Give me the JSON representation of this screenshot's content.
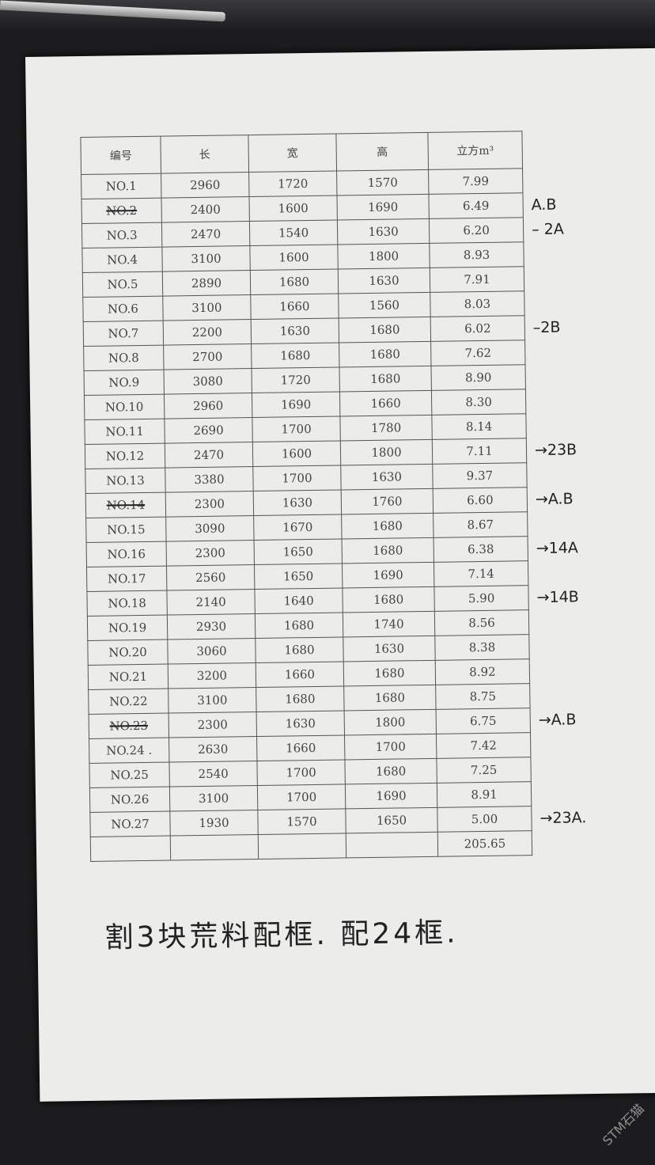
{
  "headers": [
    "编号",
    "长",
    "宽",
    "高",
    "立方m³"
  ],
  "rows": [
    {
      "id": "NO.1",
      "l": "2960",
      "w": "1720",
      "h": "1570",
      "v": "7.99",
      "note": "",
      "struck": false
    },
    {
      "id": "NO.2",
      "l": "2400",
      "w": "1600",
      "h": "1690",
      "v": "6.49",
      "note": "A.B",
      "struck": true
    },
    {
      "id": "NO.3",
      "l": "2470",
      "w": "1540",
      "h": "1630",
      "v": "6.20",
      "note": "– 2A",
      "struck": false
    },
    {
      "id": "NO.4",
      "l": "3100",
      "w": "1600",
      "h": "1800",
      "v": "8.93",
      "note": "",
      "struck": false
    },
    {
      "id": "NO.5",
      "l": "2890",
      "w": "1680",
      "h": "1630",
      "v": "7.91",
      "note": "",
      "struck": false
    },
    {
      "id": "NO.6",
      "l": "3100",
      "w": "1660",
      "h": "1560",
      "v": "8.03",
      "note": "",
      "struck": false
    },
    {
      "id": "NO.7",
      "l": "2200",
      "w": "1630",
      "h": "1680",
      "v": "6.02",
      "note": "–2B",
      "struck": false
    },
    {
      "id": "NO.8",
      "l": "2700",
      "w": "1680",
      "h": "1680",
      "v": "7.62",
      "note": "",
      "struck": false
    },
    {
      "id": "NO.9",
      "l": "3080",
      "w": "1720",
      "h": "1680",
      "v": "8.90",
      "note": "",
      "struck": false
    },
    {
      "id": "NO.10",
      "l": "2960",
      "w": "1690",
      "h": "1660",
      "v": "8.30",
      "note": "",
      "struck": false
    },
    {
      "id": "NO.11",
      "l": "2690",
      "w": "1700",
      "h": "1780",
      "v": "8.14",
      "note": "",
      "struck": false
    },
    {
      "id": "NO.12",
      "l": "2470",
      "w": "1600",
      "h": "1800",
      "v": "7.11",
      "note": "→23B",
      "struck": false
    },
    {
      "id": "NO.13",
      "l": "3380",
      "w": "1700",
      "h": "1630",
      "v": "9.37",
      "note": "",
      "struck": false
    },
    {
      "id": "NO.14",
      "l": "2300",
      "w": "1630",
      "h": "1760",
      "v": "6.60",
      "note": "→A.B",
      "struck": true
    },
    {
      "id": "NO.15",
      "l": "3090",
      "w": "1670",
      "h": "1680",
      "v": "8.67",
      "note": "",
      "struck": false
    },
    {
      "id": "NO.16",
      "l": "2300",
      "w": "1650",
      "h": "1680",
      "v": "6.38",
      "note": "→14A",
      "struck": false
    },
    {
      "id": "NO.17",
      "l": "2560",
      "w": "1650",
      "h": "1690",
      "v": "7.14",
      "note": "",
      "struck": false
    },
    {
      "id": "NO.18",
      "l": "2140",
      "w": "1640",
      "h": "1680",
      "v": "5.90",
      "note": "→14B",
      "struck": false
    },
    {
      "id": "NO.19",
      "l": "2930",
      "w": "1680",
      "h": "1740",
      "v": "8.56",
      "note": "",
      "struck": false
    },
    {
      "id": "NO.20",
      "l": "3060",
      "w": "1680",
      "h": "1630",
      "v": "8.38",
      "note": "",
      "struck": false
    },
    {
      "id": "NO.21",
      "l": "3200",
      "w": "1660",
      "h": "1680",
      "v": "8.92",
      "note": "",
      "struck": false
    },
    {
      "id": "NO.22",
      "l": "3100",
      "w": "1680",
      "h": "1680",
      "v": "8.75",
      "note": "",
      "struck": false
    },
    {
      "id": "NO.23",
      "l": "2300",
      "w": "1630",
      "h": "1800",
      "v": "6.75",
      "note": "→A.B",
      "struck": true
    },
    {
      "id": "NO.24 .",
      "l": "2630",
      "w": "1660",
      "h": "1700",
      "v": "7.42",
      "note": "",
      "struck": false
    },
    {
      "id": "NO.25",
      "l": "2540",
      "w": "1700",
      "h": "1680",
      "v": "7.25",
      "note": "",
      "struck": false
    },
    {
      "id": "NO.26",
      "l": "3100",
      "w": "1700",
      "h": "1690",
      "v": "8.91",
      "note": "",
      "struck": false
    },
    {
      "id": "NO.27",
      "l": "1930",
      "w": "1570",
      "h": "1650",
      "v": "5.00",
      "note": "→23A.",
      "struck": false
    }
  ],
  "total": "205.65",
  "handwritten_note": "割3块荒料配框. 配24框.",
  "watermark": "STM石猫"
}
